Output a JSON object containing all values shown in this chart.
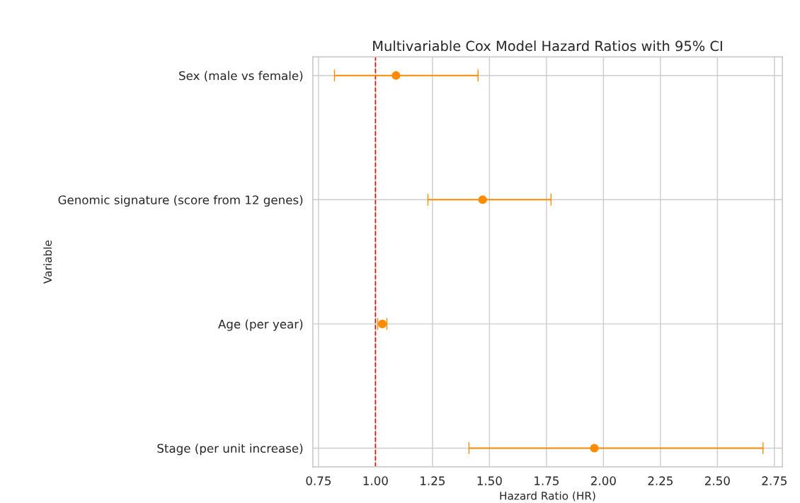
{
  "chart_data": {
    "type": "scatter",
    "orientation": "horizontal",
    "title": "Multivariable Cox Model Hazard Ratios with 95% CI",
    "xlabel": "Hazard Ratio (HR)",
    "ylabel": "Variable",
    "categories": [
      "Sex (male vs female)",
      "Genomic signature (score from 12 genes)",
      "Age (per year)",
      "Stage (per unit increase)"
    ],
    "series": [
      {
        "color": "#ff8c00",
        "values": [
          1.09,
          1.47,
          1.03,
          1.96
        ],
        "errors": [
          [
            0.82,
            1.45
          ],
          [
            1.23,
            1.77
          ],
          [
            1.01,
            1.05
          ],
          [
            1.41,
            2.7
          ]
        ]
      }
    ],
    "xlim": [
      0.725,
      2.785
    ],
    "xticks": [
      0.75,
      {
        "value": 1,
        "label": "1.00"
      },
      1.25,
      {
        "value": 1.5,
        "label": "1.50"
      },
      1.75,
      {
        "value": 2,
        "label": "2.00"
      },
      2.25,
      {
        "value": 2.5,
        "label": "2.50"
      },
      2.75
    ],
    "ref_lines": [
      {
        "axis": "x",
        "value": 1.0,
        "color": "#ff0000",
        "line_style": "dashed"
      }
    ],
    "grid": true,
    "marker": "circle",
    "legend": false
  }
}
